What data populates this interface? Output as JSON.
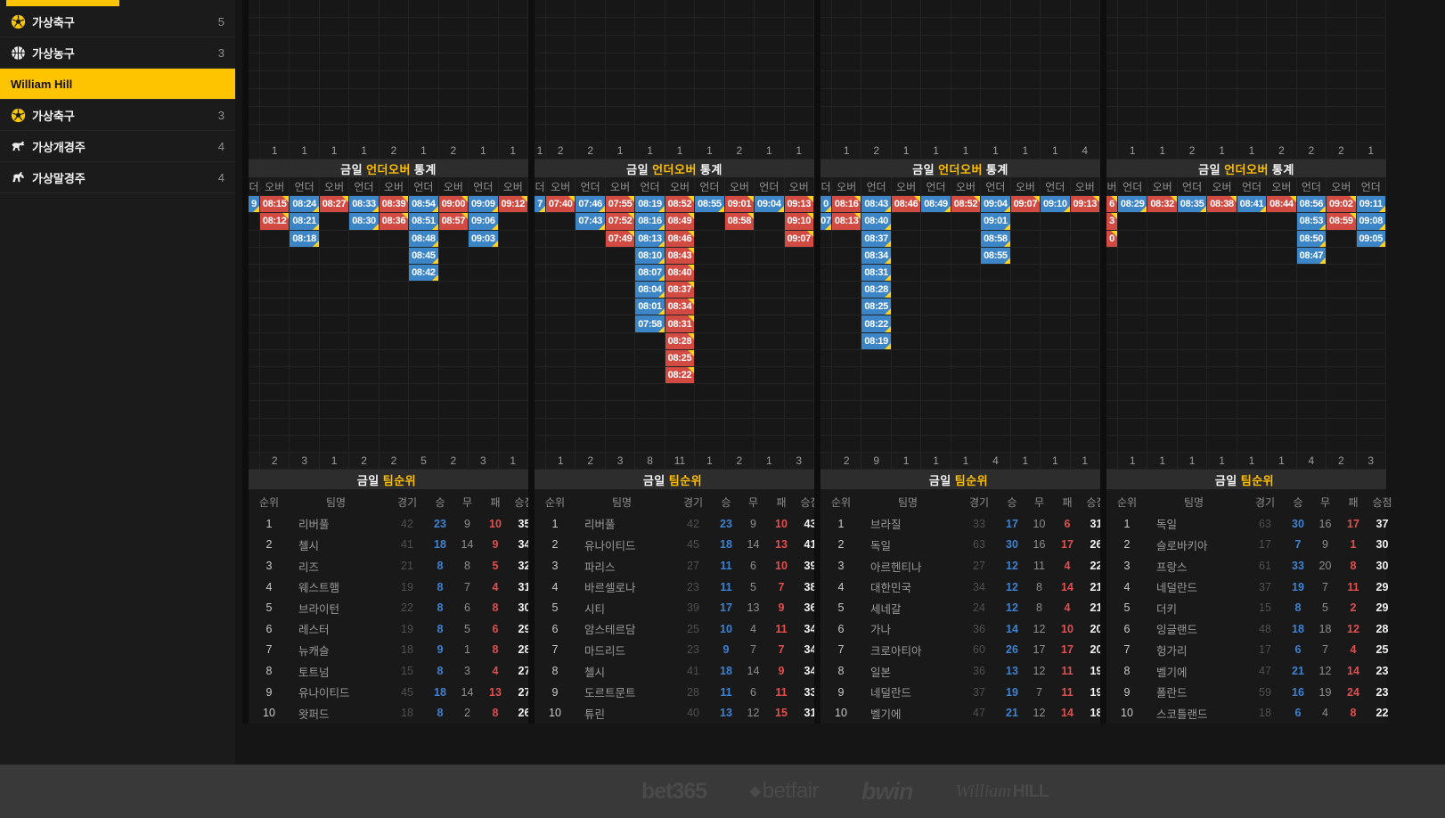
{
  "sidebar": {
    "items": [
      {
        "icon": "soccer-icon",
        "label": "가상축구",
        "count": "5",
        "selected": false
      },
      {
        "icon": "basketball-icon",
        "label": "가상농구",
        "count": "3",
        "selected": false
      },
      {
        "icon": "",
        "label": "William Hill",
        "count": "",
        "selected": true
      },
      {
        "icon": "soccer-icon",
        "label": "가상축구",
        "count": "3",
        "selected": false
      },
      {
        "icon": "dog-icon",
        "label": "가상개경주",
        "count": "4",
        "selected": false
      },
      {
        "icon": "horse-icon",
        "label": "가상말경주",
        "count": "4",
        "selected": false
      }
    ]
  },
  "titles": {
    "underover": {
      "pre": "금일",
      "hl": "언더오버",
      "post": "통계"
    },
    "rank": {
      "pre": "금일",
      "hl": "팀순위",
      "post": ""
    }
  },
  "rank_headers": [
    "순위",
    "팀명",
    "경기",
    "승",
    "무",
    "패",
    "승점"
  ],
  "colors": {
    "accent_yellow": "#ffc400",
    "under_blue": "#3c86c8",
    "over_red": "#d24b43",
    "title_yellow": "#ffbe00"
  },
  "panels": [
    {
      "top_counts": [
        "",
        "1",
        "1",
        "1",
        "1",
        "2",
        "1",
        "2",
        "1",
        "1"
      ],
      "bottom_counts": [
        "",
        "2",
        "3",
        "1",
        "2",
        "2",
        "5",
        "2",
        "3",
        "1"
      ],
      "columns": [
        {
          "side": "under",
          "clipped": true,
          "label": "더",
          "times": [
            "9"
          ]
        },
        {
          "side": "over",
          "clipped": false,
          "label": "오버",
          "times": [
            "08:15",
            "08:12"
          ]
        },
        {
          "side": "under",
          "clipped": false,
          "label": "언더",
          "times": [
            "08:24",
            "08:21",
            "08:18"
          ]
        },
        {
          "side": "over",
          "clipped": false,
          "label": "오버",
          "times": [
            "08:27"
          ]
        },
        {
          "side": "under",
          "clipped": false,
          "label": "언더",
          "times": [
            "08:33",
            "08:30"
          ]
        },
        {
          "side": "over",
          "clipped": false,
          "label": "오버",
          "times": [
            "08:39",
            "08:36"
          ]
        },
        {
          "side": "under",
          "clipped": false,
          "label": "언더",
          "times": [
            "08:54",
            "08:51",
            "08:48",
            "08:45",
            "08:42"
          ]
        },
        {
          "side": "over",
          "clipped": false,
          "label": "오버",
          "times": [
            "09:00",
            "08:57"
          ]
        },
        {
          "side": "under",
          "clipped": false,
          "label": "언더",
          "times": [
            "09:09",
            "09:06",
            "09:03"
          ]
        },
        {
          "side": "over",
          "clipped": false,
          "label": "오버",
          "times": [
            "09:12"
          ]
        }
      ],
      "table": [
        [
          "1",
          "리버풀",
          "42",
          "23",
          "9",
          "10",
          "35"
        ],
        [
          "2",
          "첼시",
          "41",
          "18",
          "14",
          "9",
          "34"
        ],
        [
          "3",
          "리즈",
          "21",
          "8",
          "8",
          "5",
          "32"
        ],
        [
          "4",
          "웨스트햄",
          "19",
          "8",
          "7",
          "4",
          "31"
        ],
        [
          "5",
          "브라이턴",
          "22",
          "8",
          "6",
          "8",
          "30"
        ],
        [
          "6",
          "레스터",
          "19",
          "8",
          "5",
          "6",
          "29"
        ],
        [
          "7",
          "뉴캐슬",
          "18",
          "9",
          "1",
          "8",
          "28"
        ],
        [
          "8",
          "토트넘",
          "15",
          "8",
          "3",
          "4",
          "27"
        ],
        [
          "9",
          "유나이티드",
          "45",
          "18",
          "14",
          "13",
          "27"
        ],
        [
          "10",
          "왓퍼드",
          "18",
          "8",
          "2",
          "8",
          "26"
        ]
      ]
    },
    {
      "top_counts": [
        "1",
        "2",
        "2",
        "1",
        "1",
        "1",
        "1",
        "2",
        "1",
        "1"
      ],
      "bottom_counts": [
        "",
        "1",
        "2",
        "3",
        "8",
        "11",
        "1",
        "2",
        "1",
        "3"
      ],
      "columns": [
        {
          "side": "under",
          "clipped": true,
          "label": "더",
          "times": [
            "7"
          ]
        },
        {
          "side": "over",
          "clipped": false,
          "label": "오버",
          "times": [
            "07:40"
          ]
        },
        {
          "side": "under",
          "clipped": false,
          "label": "언더",
          "times": [
            "07:46",
            "07:43"
          ]
        },
        {
          "side": "over",
          "clipped": false,
          "label": "오버",
          "times": [
            "07:55",
            "07:52",
            "07:49"
          ]
        },
        {
          "side": "under",
          "clipped": false,
          "label": "언더",
          "times": [
            "08:19",
            "08:16",
            "08:13",
            "08:10",
            "08:07",
            "08:04",
            "08:01",
            "07:58"
          ]
        },
        {
          "side": "over",
          "clipped": false,
          "label": "오버",
          "times": [
            "08:52",
            "08:49",
            "08:46",
            "08:43",
            "08:40",
            "08:37",
            "08:34",
            "08:31",
            "08:28",
            "08:25",
            "08:22"
          ]
        },
        {
          "side": "under",
          "clipped": false,
          "label": "언더",
          "times": [
            "08:55"
          ]
        },
        {
          "side": "over",
          "clipped": false,
          "label": "오버",
          "times": [
            "09:01",
            "08:58"
          ]
        },
        {
          "side": "under",
          "clipped": false,
          "label": "언더",
          "times": [
            "09:04"
          ]
        },
        {
          "side": "over",
          "clipped": false,
          "label": "오버",
          "times": [
            "09:13",
            "09:10",
            "09:07"
          ]
        }
      ],
      "table": [
        [
          "1",
          "리버풀",
          "42",
          "23",
          "9",
          "10",
          "43"
        ],
        [
          "2",
          "유나이티드",
          "45",
          "18",
          "14",
          "13",
          "41"
        ],
        [
          "3",
          "파리스",
          "27",
          "11",
          "6",
          "10",
          "39"
        ],
        [
          "4",
          "바르셀로나",
          "23",
          "11",
          "5",
          "7",
          "38"
        ],
        [
          "5",
          "시티",
          "39",
          "17",
          "13",
          "9",
          "36"
        ],
        [
          "6",
          "암스테르담",
          "25",
          "10",
          "4",
          "11",
          "34"
        ],
        [
          "7",
          "마드리드",
          "23",
          "9",
          "7",
          "7",
          "34"
        ],
        [
          "8",
          "첼시",
          "41",
          "18",
          "14",
          "9",
          "34"
        ],
        [
          "9",
          "도르트문트",
          "28",
          "11",
          "6",
          "11",
          "33"
        ],
        [
          "10",
          "튜린",
          "40",
          "13",
          "12",
          "15",
          "31"
        ]
      ]
    },
    {
      "top_counts": [
        "",
        "1",
        "2",
        "1",
        "1",
        "1",
        "1",
        "1",
        "1",
        "4"
      ],
      "bottom_counts": [
        "",
        "2",
        "9",
        "1",
        "1",
        "1",
        "4",
        "1",
        "1",
        "1"
      ],
      "columns": [
        {
          "side": "under",
          "clipped": true,
          "label": "더",
          "times": [
            "0",
            "07"
          ]
        },
        {
          "side": "over",
          "clipped": false,
          "label": "오버",
          "times": [
            "08:16",
            "08:13"
          ]
        },
        {
          "side": "under",
          "clipped": false,
          "label": "언더",
          "times": [
            "08:43",
            "08:40",
            "08:37",
            "08:34",
            "08:31",
            "08:28",
            "08:25",
            "08:22",
            "08:19"
          ]
        },
        {
          "side": "over",
          "clipped": false,
          "label": "오버",
          "times": [
            "08:46"
          ]
        },
        {
          "side": "under",
          "clipped": false,
          "label": "언더",
          "times": [
            "08:49"
          ]
        },
        {
          "side": "over",
          "clipped": false,
          "label": "오버",
          "times": [
            "08:52"
          ]
        },
        {
          "side": "under",
          "clipped": false,
          "label": "언더",
          "times": [
            "09:04",
            "09:01",
            "08:58",
            "08:55"
          ]
        },
        {
          "side": "over",
          "clipped": false,
          "label": "오버",
          "times": [
            "09:07"
          ]
        },
        {
          "side": "under",
          "clipped": false,
          "label": "언더",
          "times": [
            "09:10"
          ]
        },
        {
          "side": "over",
          "clipped": false,
          "label": "오버",
          "times": [
            "09:13"
          ]
        }
      ],
      "table": [
        [
          "1",
          "브라질",
          "33",
          "17",
          "10",
          "6",
          "31"
        ],
        [
          "2",
          "독일",
          "63",
          "30",
          "16",
          "17",
          "26"
        ],
        [
          "3",
          "아르헨티나",
          "27",
          "12",
          "11",
          "4",
          "22"
        ],
        [
          "4",
          "대한민국",
          "34",
          "12",
          "8",
          "14",
          "21"
        ],
        [
          "5",
          "세네갈",
          "24",
          "12",
          "8",
          "4",
          "21"
        ],
        [
          "6",
          "가나",
          "36",
          "14",
          "12",
          "10",
          "20"
        ],
        [
          "7",
          "크로아티아",
          "60",
          "26",
          "17",
          "17",
          "20"
        ],
        [
          "8",
          "일본",
          "36",
          "13",
          "12",
          "11",
          "19"
        ],
        [
          "9",
          "네덜란드",
          "37",
          "19",
          "7",
          "11",
          "19"
        ],
        [
          "10",
          "벨기에",
          "47",
          "21",
          "12",
          "14",
          "18"
        ]
      ]
    },
    {
      "top_counts": [
        "",
        "1",
        "1",
        "2",
        "1",
        "1",
        "2",
        "2",
        "2",
        "1"
      ],
      "bottom_counts": [
        "",
        "1",
        "1",
        "1",
        "1",
        "1",
        "1",
        "4",
        "2",
        "3"
      ],
      "columns": [
        {
          "side": "over",
          "clipped": true,
          "label": "버",
          "times": [
            "6",
            "3",
            "0"
          ]
        },
        {
          "side": "under",
          "clipped": false,
          "label": "언더",
          "times": [
            "08:29"
          ]
        },
        {
          "side": "over",
          "clipped": false,
          "label": "오버",
          "times": [
            "08:32"
          ]
        },
        {
          "side": "under",
          "clipped": false,
          "label": "언더",
          "times": [
            "08:35"
          ]
        },
        {
          "side": "over",
          "clipped": false,
          "label": "오버",
          "times": [
            "08:38"
          ]
        },
        {
          "side": "under",
          "clipped": false,
          "label": "언더",
          "times": [
            "08:41"
          ]
        },
        {
          "side": "over",
          "clipped": false,
          "label": "오버",
          "times": [
            "08:44"
          ]
        },
        {
          "side": "under",
          "clipped": false,
          "label": "언더",
          "times": [
            "08:56",
            "08:53",
            "08:50",
            "08:47"
          ]
        },
        {
          "side": "over",
          "clipped": false,
          "label": "오버",
          "times": [
            "09:02",
            "08:59"
          ]
        },
        {
          "side": "under",
          "clipped": false,
          "label": "언더",
          "times": [
            "09:11",
            "09:08",
            "09:05"
          ]
        }
      ],
      "table": [
        [
          "1",
          "독일",
          "63",
          "30",
          "16",
          "17",
          "37"
        ],
        [
          "2",
          "슬로바키아",
          "17",
          "7",
          "9",
          "1",
          "30"
        ],
        [
          "3",
          "프랑스",
          "61",
          "33",
          "20",
          "8",
          "30"
        ],
        [
          "4",
          "네덜란드",
          "37",
          "19",
          "7",
          "11",
          "29"
        ],
        [
          "5",
          "더키",
          "15",
          "8",
          "5",
          "2",
          "29"
        ],
        [
          "6",
          "잉글랜드",
          "48",
          "18",
          "18",
          "12",
          "28"
        ],
        [
          "7",
          "헝가리",
          "17",
          "6",
          "7",
          "4",
          "25"
        ],
        [
          "8",
          "벨기에",
          "47",
          "21",
          "12",
          "14",
          "23"
        ],
        [
          "9",
          "폴란드",
          "59",
          "16",
          "19",
          "24",
          "23"
        ],
        [
          "10",
          "스코틀랜드",
          "18",
          "6",
          "4",
          "8",
          "22"
        ]
      ]
    }
  ],
  "footer": {
    "logos": [
      "bet365",
      "betfair",
      "bwin",
      "William HILL"
    ],
    "betfair_diamond": "◆",
    "williamhill_script": "William",
    "williamhill_block": "HILL"
  }
}
